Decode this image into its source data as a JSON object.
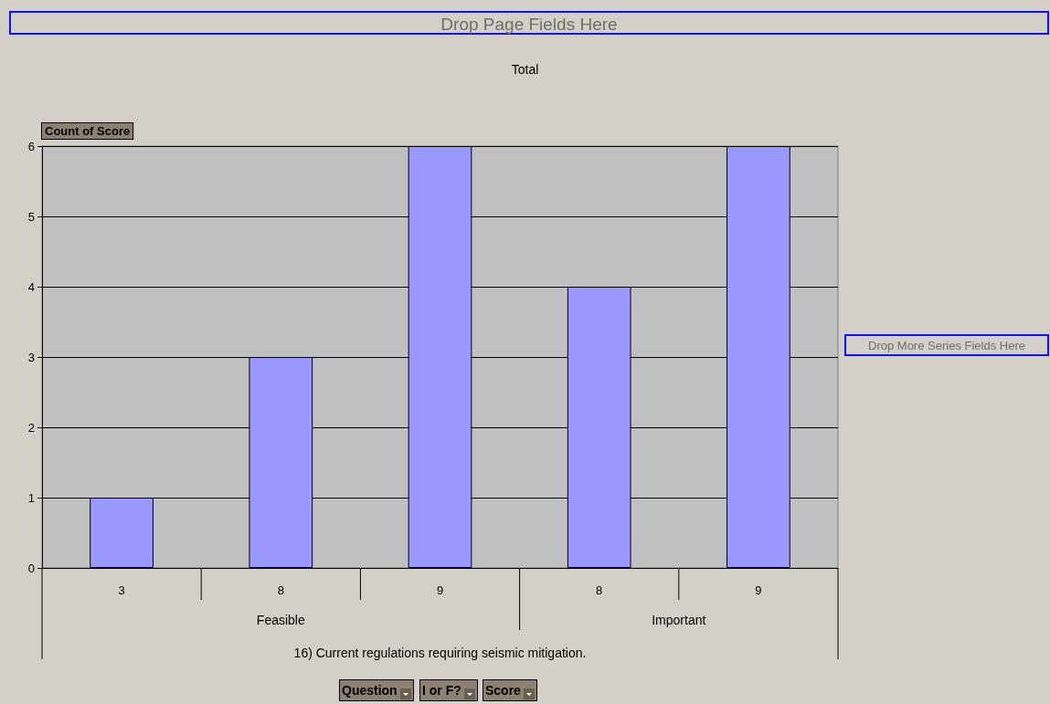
{
  "chart_data": {
    "type": "bar",
    "title": "Total",
    "ylabel": "Count of Score",
    "categories": [
      "3",
      "8",
      "9",
      "8",
      "9"
    ],
    "values": [
      1,
      3,
      6,
      4,
      6
    ],
    "color": "#9999ff",
    "ylim": [
      0,
      6
    ],
    "yticks": [
      0,
      1,
      2,
      3,
      4,
      5,
      6
    ],
    "grid": "y",
    "annotations": [
      "Feasible",
      "Important",
      "16) Current regulations requiring seismic mitigation.",
      "Drop Page Fields Here",
      "Drop More Series Fields Here",
      "Question",
      "I or F?",
      "Score"
    ]
  }
}
